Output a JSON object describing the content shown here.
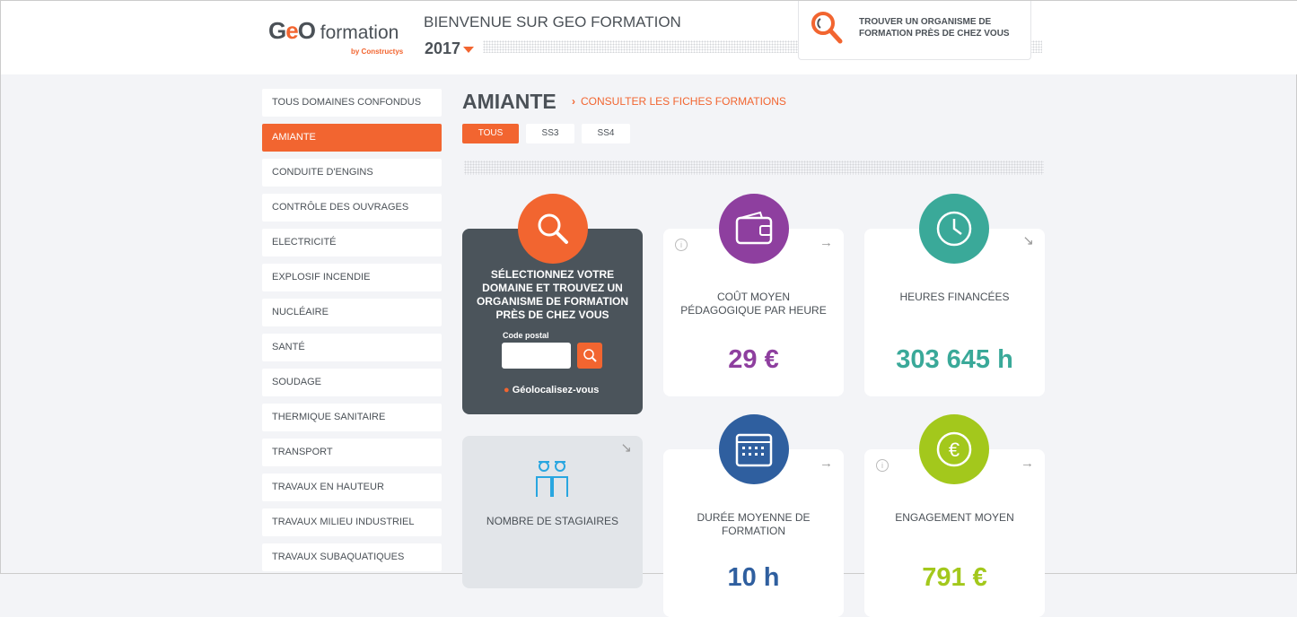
{
  "header": {
    "logo_text": "GEO formation",
    "logo_sub": "by Constructys",
    "welcome": "BIENVENUE SUR GEO FORMATION",
    "year": "2017",
    "find_label_1": "TROUVER UN ORGANISME DE",
    "find_label_2": "FORMATION PRÈS DE CHEZ VOUS"
  },
  "sidebar": {
    "items": [
      {
        "label": "TOUS DOMAINES CONFONDUS"
      },
      {
        "label": "AMIANTE",
        "active": true
      },
      {
        "label": "CONDUITE D'ENGINS"
      },
      {
        "label": "CONTRÔLE DES OUVRAGES"
      },
      {
        "label": "ELECTRICITÉ"
      },
      {
        "label": "EXPLOSIF INCENDIE"
      },
      {
        "label": "NUCLÉAIRE"
      },
      {
        "label": "SANTÉ"
      },
      {
        "label": "SOUDAGE"
      },
      {
        "label": "THERMIQUE SANITAIRE"
      },
      {
        "label": "TRANSPORT"
      },
      {
        "label": "TRAVAUX EN HAUTEUR"
      },
      {
        "label": "TRAVAUX MILIEU INDUSTRIEL"
      },
      {
        "label": "TRAVAUX SUBAQUATIQUES"
      }
    ]
  },
  "main": {
    "title": "AMIANTE",
    "link": "CONSULTER LES FICHES FORMATIONS",
    "tabs": [
      {
        "label": "TOUS",
        "active": true
      },
      {
        "label": "SS3"
      },
      {
        "label": "SS4"
      }
    ]
  },
  "search_card": {
    "text": "SÉLECTIONNEZ VOTRE DOMAINE ET TROUVEZ UN ORGANISME DE FORMATION PRÈS DE CHEZ VOUS",
    "postal_label": "Code postal",
    "postal_value": "",
    "geoloc": "Géolocalisez-vous"
  },
  "stats": {
    "cost": {
      "label": "COÛT MOYEN PÉDAGOGIQUE PAR HEURE",
      "value": "29 €",
      "color": "#8e3f9f"
    },
    "hours": {
      "label": "HEURES FINANCÉES",
      "value": "303 645 h",
      "color": "#3aa999"
    },
    "trainees": {
      "label": "NOMBRE DE STAGIAIRES"
    },
    "duration": {
      "label": "DURÉE MOYENNE DE FORMATION",
      "value": "10 h",
      "color": "#2f5f9f"
    },
    "engagement": {
      "label": "ENGAGEMENT MOYEN",
      "value": "791 €",
      "color": "#a3c81c"
    }
  },
  "colors": {
    "accent": "#f26530",
    "dark_card": "#4b545b"
  }
}
